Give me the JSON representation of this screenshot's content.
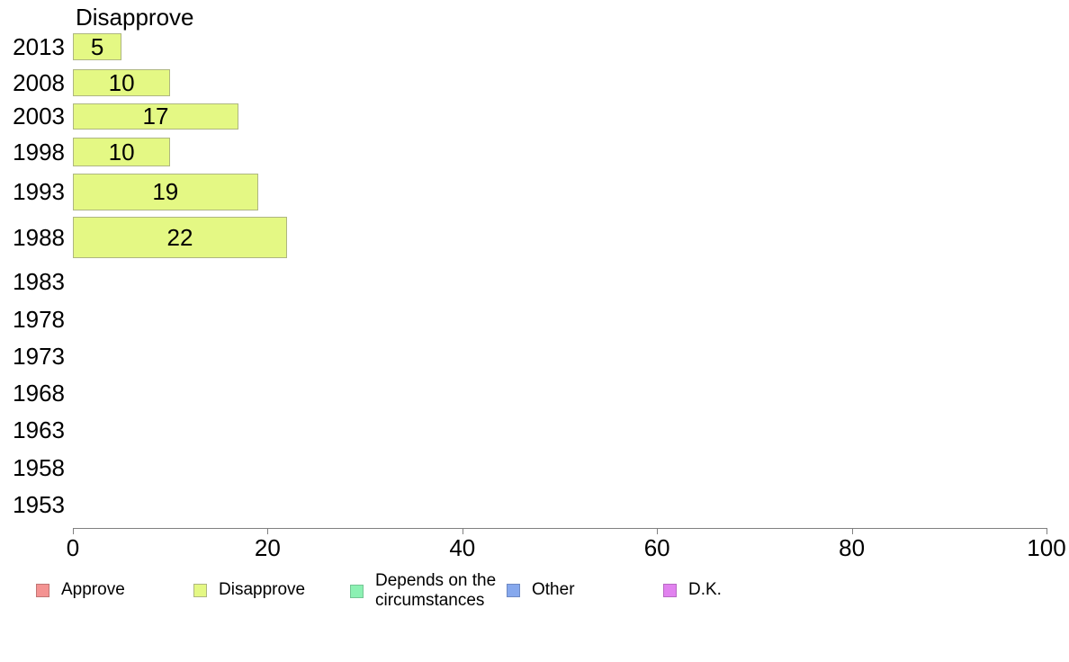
{
  "chart_data": {
    "type": "bar",
    "orientation": "horizontal",
    "title": "Disapprove",
    "xlabel": "",
    "ylabel": "",
    "categories": [
      "2013",
      "2008",
      "2003",
      "1998",
      "1993",
      "1988",
      "1983",
      "1978",
      "1973",
      "1968",
      "1963",
      "1958",
      "1953"
    ],
    "series": [
      {
        "name": "Approve",
        "color": "#F49392",
        "border": "#C07574"
      },
      {
        "name": "Disapprove",
        "color": "#E4F884",
        "border": "#AEB681",
        "values": [
          5,
          10,
          17,
          10,
          19,
          22,
          null,
          null,
          null,
          null,
          null,
          null,
          null
        ]
      },
      {
        "name": "Depends on the circumstances",
        "color": "#8CF1B3",
        "border": "#74C594"
      },
      {
        "name": "Other",
        "color": "#86A8ED",
        "border": "#6E89C2"
      },
      {
        "name": "D.K.",
        "color": "#E182EF",
        "border": "#B76AC3"
      }
    ],
    "xlim": [
      0,
      100
    ],
    "xticks": [
      0,
      20,
      40,
      60,
      80,
      100
    ],
    "grid": false,
    "legend_position": "bottom",
    "background": "#FFFFFF",
    "axis_color": "#808080"
  }
}
